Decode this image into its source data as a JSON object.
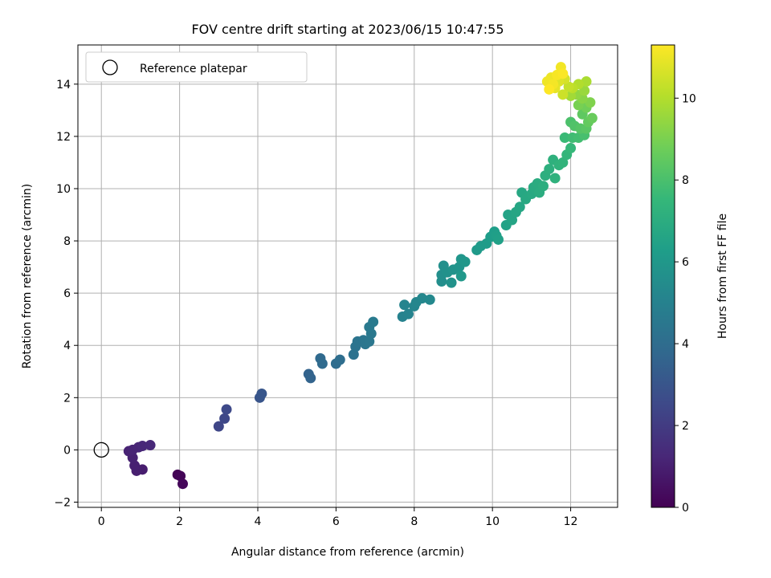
{
  "chart_data": {
    "type": "scatter",
    "title": "FOV centre drift starting at 2023/06/15 10:47:55",
    "xlabel": "Angular distance from reference (arcmin)",
    "ylabel": "Rotation from reference (arcmin)",
    "xlim": [
      -0.6,
      13.2
    ],
    "ylim": [
      -2.2,
      15.5
    ],
    "xticks": [
      0,
      2,
      4,
      6,
      8,
      10,
      12
    ],
    "yticks": [
      -2,
      0,
      2,
      4,
      6,
      8,
      10,
      12,
      14
    ],
    "grid": true,
    "legend": {
      "position": "top-left",
      "entries": [
        "Reference platepar"
      ]
    },
    "colorbar": {
      "label": "Hours from first FF file",
      "range": [
        0,
        11.3
      ],
      "ticks": [
        0,
        2,
        4,
        6,
        8,
        10
      ],
      "colormap": [
        "#440154",
        "#482878",
        "#3e4989",
        "#31688e",
        "#26828e",
        "#1f9e89",
        "#35b779",
        "#6ece58",
        "#b5de2b",
        "#fde725"
      ]
    },
    "reference": {
      "x": 0,
      "y": 0
    },
    "points": [
      {
        "x": 1.95,
        "y": -0.95,
        "t": 0.05
      },
      {
        "x": 2.02,
        "y": -1.0,
        "t": 0.12
      },
      {
        "x": 2.08,
        "y": -1.3,
        "t": 0.2
      },
      {
        "x": 1.05,
        "y": -0.75,
        "t": 0.9
      },
      {
        "x": 0.9,
        "y": -0.8,
        "t": 0.95
      },
      {
        "x": 0.85,
        "y": -0.6,
        "t": 1.0
      },
      {
        "x": 0.8,
        "y": -0.3,
        "t": 1.05
      },
      {
        "x": 0.7,
        "y": -0.05,
        "t": 1.1
      },
      {
        "x": 0.8,
        "y": 0.0,
        "t": 1.15
      },
      {
        "x": 0.95,
        "y": 0.1,
        "t": 1.2
      },
      {
        "x": 1.05,
        "y": 0.15,
        "t": 1.25
      },
      {
        "x": 1.25,
        "y": 0.18,
        "t": 1.3
      },
      {
        "x": 3.0,
        "y": 0.9,
        "t": 2.4
      },
      {
        "x": 3.15,
        "y": 1.2,
        "t": 2.45
      },
      {
        "x": 3.2,
        "y": 1.55,
        "t": 2.5
      },
      {
        "x": 4.05,
        "y": 2.0,
        "t": 3.0
      },
      {
        "x": 4.1,
        "y": 2.15,
        "t": 3.05
      },
      {
        "x": 5.3,
        "y": 2.9,
        "t": 3.55
      },
      {
        "x": 5.35,
        "y": 2.75,
        "t": 3.6
      },
      {
        "x": 5.6,
        "y": 3.5,
        "t": 3.85
      },
      {
        "x": 5.65,
        "y": 3.3,
        "t": 3.9
      },
      {
        "x": 6.0,
        "y": 3.3,
        "t": 4.0
      },
      {
        "x": 6.1,
        "y": 3.45,
        "t": 4.05
      },
      {
        "x": 6.45,
        "y": 3.65,
        "t": 4.25
      },
      {
        "x": 6.5,
        "y": 3.95,
        "t": 4.3
      },
      {
        "x": 6.55,
        "y": 4.15,
        "t": 4.35
      },
      {
        "x": 6.7,
        "y": 4.2,
        "t": 4.4
      },
      {
        "x": 6.75,
        "y": 4.05,
        "t": 4.45
      },
      {
        "x": 6.85,
        "y": 4.15,
        "t": 4.5
      },
      {
        "x": 6.9,
        "y": 4.45,
        "t": 4.55
      },
      {
        "x": 6.85,
        "y": 4.7,
        "t": 4.6
      },
      {
        "x": 6.95,
        "y": 4.9,
        "t": 4.65
      },
      {
        "x": 7.7,
        "y": 5.1,
        "t": 5.0
      },
      {
        "x": 7.85,
        "y": 5.2,
        "t": 5.05
      },
      {
        "x": 7.75,
        "y": 5.55,
        "t": 5.1
      },
      {
        "x": 8.0,
        "y": 5.5,
        "t": 5.15
      },
      {
        "x": 8.05,
        "y": 5.65,
        "t": 5.2
      },
      {
        "x": 8.2,
        "y": 5.8,
        "t": 5.25
      },
      {
        "x": 8.4,
        "y": 5.75,
        "t": 5.3
      },
      {
        "x": 8.7,
        "y": 6.45,
        "t": 5.55
      },
      {
        "x": 8.7,
        "y": 6.7,
        "t": 5.6
      },
      {
        "x": 8.75,
        "y": 7.05,
        "t": 5.65
      },
      {
        "x": 8.85,
        "y": 6.8,
        "t": 5.7
      },
      {
        "x": 8.95,
        "y": 6.4,
        "t": 5.75
      },
      {
        "x": 9.0,
        "y": 6.9,
        "t": 5.8
      },
      {
        "x": 9.15,
        "y": 7.0,
        "t": 5.85
      },
      {
        "x": 9.2,
        "y": 7.3,
        "t": 5.9
      },
      {
        "x": 9.3,
        "y": 7.2,
        "t": 5.95
      },
      {
        "x": 9.2,
        "y": 6.65,
        "t": 6.0
      },
      {
        "x": 9.6,
        "y": 7.65,
        "t": 6.1
      },
      {
        "x": 9.7,
        "y": 7.8,
        "t": 6.15
      },
      {
        "x": 9.85,
        "y": 7.9,
        "t": 6.2
      },
      {
        "x": 9.95,
        "y": 8.15,
        "t": 6.25
      },
      {
        "x": 10.05,
        "y": 8.35,
        "t": 6.3
      },
      {
        "x": 10.1,
        "y": 8.2,
        "t": 6.35
      },
      {
        "x": 10.15,
        "y": 8.05,
        "t": 6.4
      },
      {
        "x": 10.35,
        "y": 8.6,
        "t": 6.5
      },
      {
        "x": 10.4,
        "y": 9.0,
        "t": 6.55
      },
      {
        "x": 10.5,
        "y": 8.8,
        "t": 6.6
      },
      {
        "x": 10.6,
        "y": 9.1,
        "t": 6.65
      },
      {
        "x": 10.7,
        "y": 9.3,
        "t": 6.7
      },
      {
        "x": 10.75,
        "y": 9.85,
        "t": 6.75
      },
      {
        "x": 10.85,
        "y": 9.6,
        "t": 6.8
      },
      {
        "x": 11.0,
        "y": 9.8,
        "t": 6.85
      },
      {
        "x": 11.05,
        "y": 10.05,
        "t": 6.9
      },
      {
        "x": 11.15,
        "y": 10.2,
        "t": 6.95
      },
      {
        "x": 11.2,
        "y": 9.85,
        "t": 7.0
      },
      {
        "x": 11.3,
        "y": 10.1,
        "t": 7.05
      },
      {
        "x": 11.35,
        "y": 10.5,
        "t": 7.1
      },
      {
        "x": 11.45,
        "y": 10.75,
        "t": 7.15
      },
      {
        "x": 11.55,
        "y": 11.1,
        "t": 7.2
      },
      {
        "x": 11.6,
        "y": 10.4,
        "t": 7.25
      },
      {
        "x": 11.7,
        "y": 10.9,
        "t": 7.3
      },
      {
        "x": 11.8,
        "y": 11.0,
        "t": 7.35
      },
      {
        "x": 11.9,
        "y": 11.3,
        "t": 7.45
      },
      {
        "x": 12.0,
        "y": 11.55,
        "t": 7.55
      },
      {
        "x": 11.85,
        "y": 11.95,
        "t": 7.65
      },
      {
        "x": 12.05,
        "y": 11.95,
        "t": 7.75
      },
      {
        "x": 12.2,
        "y": 11.95,
        "t": 7.85
      },
      {
        "x": 12.35,
        "y": 12.05,
        "t": 7.95
      },
      {
        "x": 12.0,
        "y": 12.55,
        "t": 8.05
      },
      {
        "x": 12.1,
        "y": 12.4,
        "t": 8.15
      },
      {
        "x": 12.25,
        "y": 12.3,
        "t": 8.25
      },
      {
        "x": 12.4,
        "y": 12.3,
        "t": 8.35
      },
      {
        "x": 12.3,
        "y": 12.85,
        "t": 8.45
      },
      {
        "x": 12.45,
        "y": 12.55,
        "t": 8.55
      },
      {
        "x": 12.55,
        "y": 12.7,
        "t": 8.65
      },
      {
        "x": 12.4,
        "y": 13.1,
        "t": 8.8
      },
      {
        "x": 12.2,
        "y": 13.2,
        "t": 8.95
      },
      {
        "x": 12.5,
        "y": 13.3,
        "t": 9.1
      },
      {
        "x": 12.3,
        "y": 13.45,
        "t": 9.25
      },
      {
        "x": 12.15,
        "y": 13.6,
        "t": 9.4
      },
      {
        "x": 12.35,
        "y": 13.75,
        "t": 9.55
      },
      {
        "x": 12.0,
        "y": 13.55,
        "t": 9.7
      },
      {
        "x": 12.4,
        "y": 14.1,
        "t": 9.85
      },
      {
        "x": 12.2,
        "y": 14.0,
        "t": 10.0
      },
      {
        "x": 12.05,
        "y": 13.85,
        "t": 10.15
      },
      {
        "x": 11.95,
        "y": 13.9,
        "t": 10.3
      },
      {
        "x": 11.8,
        "y": 13.6,
        "t": 10.45
      },
      {
        "x": 11.85,
        "y": 14.2,
        "t": 10.6
      },
      {
        "x": 11.7,
        "y": 14.1,
        "t": 10.75
      },
      {
        "x": 11.6,
        "y": 13.85,
        "t": 10.9
      },
      {
        "x": 11.5,
        "y": 14.25,
        "t": 11.0
      },
      {
        "x": 11.4,
        "y": 14.1,
        "t": 11.05
      },
      {
        "x": 11.75,
        "y": 14.65,
        "t": 11.1
      },
      {
        "x": 11.55,
        "y": 14.0,
        "t": 11.15
      },
      {
        "x": 11.65,
        "y": 14.35,
        "t": 11.2
      },
      {
        "x": 11.8,
        "y": 14.4,
        "t": 11.25
      },
      {
        "x": 11.45,
        "y": 13.8,
        "t": 11.3
      }
    ]
  }
}
